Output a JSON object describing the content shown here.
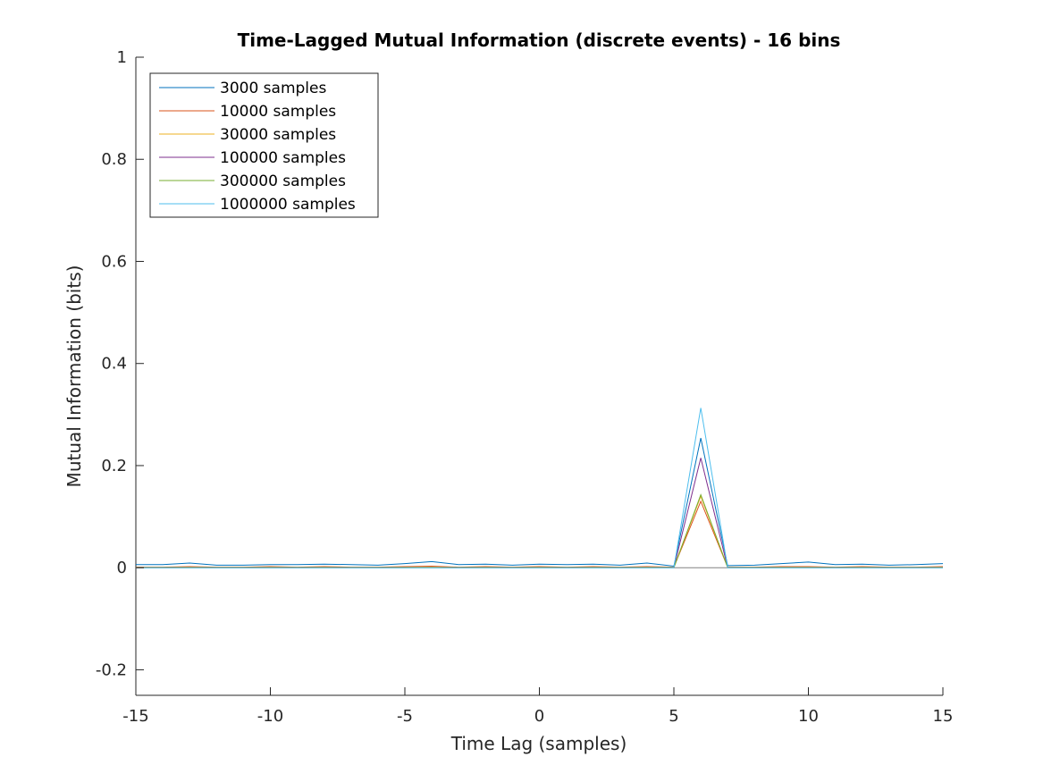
{
  "chart_data": {
    "type": "line",
    "title": "Time-Lagged Mutual Information (discrete events) - 16 bins",
    "xlabel": "Time Lag (samples)",
    "ylabel": "Mutual Information (bits)",
    "xlim": [
      -15,
      15
    ],
    "ylim": [
      -0.25,
      1
    ],
    "xticks": [
      -15,
      -10,
      -5,
      0,
      5,
      10,
      15
    ],
    "xtick_labels": [
      "-15",
      "-10",
      "-5",
      "0",
      "5",
      "10",
      "15"
    ],
    "yticks": [
      -0.2,
      0,
      0.2,
      0.4,
      0.6,
      0.8,
      1
    ],
    "ytick_labels": [
      "-0.2",
      "0",
      "0.2",
      "0.4",
      "0.6",
      "0.8",
      "1"
    ],
    "grid": false,
    "legend_position": "top-left",
    "x": [
      -15,
      -14,
      -13,
      -12,
      -11,
      -10,
      -9,
      -8,
      -7,
      -6,
      -5,
      -4,
      -3,
      -2,
      -1,
      0,
      1,
      2,
      3,
      4,
      5,
      6,
      7,
      8,
      9,
      10,
      11,
      12,
      13,
      14,
      15
    ],
    "series": [
      {
        "name": "3000 samples",
        "color": "#0072BD",
        "values": [
          0.006,
          0.006,
          0.009,
          0.005,
          0.005,
          0.006,
          0.006,
          0.007,
          0.006,
          0.005,
          0.008,
          0.012,
          0.006,
          0.007,
          0.005,
          0.007,
          0.006,
          0.007,
          0.005,
          0.009,
          0.003,
          0.254,
          0.004,
          0.005,
          0.008,
          0.011,
          0.006,
          0.007,
          0.005,
          0.006,
          0.008
        ]
      },
      {
        "name": "10000 samples",
        "color": "#D95319",
        "values": [
          0.001,
          0.001,
          0.002,
          0.001,
          0.001,
          0.002,
          0.001,
          0.002,
          0.001,
          0.001,
          0.002,
          0.003,
          0.001,
          0.002,
          0.001,
          0.002,
          0.001,
          0.002,
          0.001,
          0.002,
          0.001,
          0.13,
          0.001,
          0.001,
          0.002,
          0.002,
          0.001,
          0.002,
          0.001,
          0.001,
          0.002
        ]
      },
      {
        "name": "30000 samples",
        "color": "#EDB120",
        "values": [
          0.0005,
          0.0005,
          0.0008,
          0.0005,
          0.0005,
          0.0007,
          0.0005,
          0.0008,
          0.0005,
          0.0005,
          0.0008,
          0.001,
          0.0005,
          0.0007,
          0.0005,
          0.0007,
          0.0005,
          0.0007,
          0.0005,
          0.0008,
          0.0005,
          0.14,
          0.0005,
          0.0005,
          0.0007,
          0.0008,
          0.0005,
          0.0007,
          0.0005,
          0.0005,
          0.0007
        ]
      },
      {
        "name": "100000 samples",
        "color": "#7E2F8E",
        "values": [
          0.0002,
          0.0002,
          0.0003,
          0.0002,
          0.0002,
          0.0002,
          0.0002,
          0.0003,
          0.0002,
          0.0002,
          0.0003,
          0.0004,
          0.0002,
          0.0003,
          0.0002,
          0.0003,
          0.0002,
          0.0003,
          0.0002,
          0.0003,
          0.0002,
          0.215,
          0.0002,
          0.0002,
          0.0003,
          0.0003,
          0.0002,
          0.0003,
          0.0002,
          0.0002,
          0.0003
        ]
      },
      {
        "name": "300000 samples",
        "color": "#77AC30",
        "values": [
          0.0001,
          0.0001,
          0.0001,
          0.0001,
          0.0001,
          0.0001,
          0.0001,
          0.0001,
          0.0001,
          0.0001,
          0.0001,
          0.0001,
          0.0001,
          0.0001,
          0.0001,
          0.0001,
          0.0001,
          0.0001,
          0.0001,
          0.0001,
          0.0001,
          0.143,
          0.0001,
          0.0001,
          0.0001,
          0.0001,
          0.0001,
          0.0001,
          0.0001,
          0.0001,
          0.0001
        ]
      },
      {
        "name": "1000000 samples",
        "color": "#4DBEEE",
        "values": [
          0,
          0,
          0,
          0,
          0,
          0,
          0,
          0,
          0,
          0,
          0,
          0,
          0,
          0,
          0,
          0,
          0,
          0,
          0,
          0,
          0,
          0.313,
          0,
          0,
          0,
          0,
          0,
          0,
          0,
          0,
          0
        ]
      }
    ]
  }
}
